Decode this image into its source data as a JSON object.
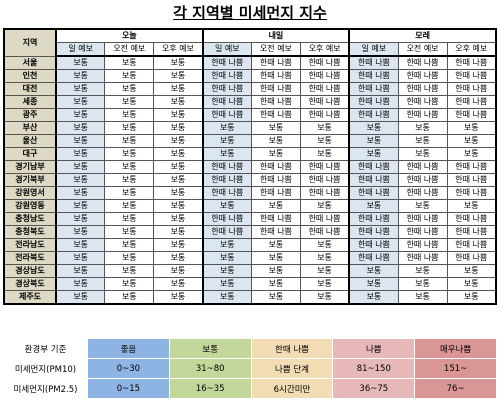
{
  "title": "각 지역별 미세먼지 지수",
  "forecast": {
    "region_header": "지역",
    "days": [
      "오늘",
      "내일",
      "모레"
    ],
    "periods": [
      "일 예보",
      "오전 예보",
      "오후 예보"
    ],
    "rows": [
      {
        "region": "서울",
        "values": [
          "보통",
          "보통",
          "보통",
          "한때 나쁨",
          "한때 나쁨",
          "한때 나쁨",
          "한때 나쁨",
          "한때 나쁨",
          "한때 나쁨"
        ]
      },
      {
        "region": "인천",
        "values": [
          "보통",
          "보통",
          "보통",
          "한때 나쁨",
          "한때 나쁨",
          "한때 나쁨",
          "한때 나쁨",
          "한때 나쁨",
          "한때 나쁨"
        ]
      },
      {
        "region": "대전",
        "values": [
          "보통",
          "보통",
          "보통",
          "한때 나쁨",
          "한때 나쁨",
          "한때 나쁨",
          "한때 나쁨",
          "한때 나쁨",
          "한때 나쁨"
        ]
      },
      {
        "region": "세종",
        "values": [
          "보통",
          "보통",
          "보통",
          "한때 나쁨",
          "한때 나쁨",
          "한때 나쁨",
          "한때 나쁨",
          "한때 나쁨",
          "한때 나쁨"
        ]
      },
      {
        "region": "광주",
        "values": [
          "보통",
          "보통",
          "보통",
          "한때 나쁨",
          "한때 나쁨",
          "한때 나쁨",
          "한때 나쁨",
          "한때 나쁨",
          "한때 나쁨"
        ]
      },
      {
        "region": "부산",
        "values": [
          "보통",
          "보통",
          "보통",
          "보통",
          "보통",
          "보통",
          "보통",
          "보통",
          "보통"
        ]
      },
      {
        "region": "울산",
        "values": [
          "보통",
          "보통",
          "보통",
          "보통",
          "보통",
          "보통",
          "보통",
          "보통",
          "보통"
        ]
      },
      {
        "region": "대구",
        "values": [
          "보통",
          "보통",
          "보통",
          "보통",
          "보통",
          "보통",
          "보통",
          "보통",
          "보통"
        ]
      },
      {
        "region": "경기남부",
        "values": [
          "보통",
          "보통",
          "보통",
          "한때 나쁨",
          "한때 나쁨",
          "한때 나쁨",
          "한때 나쁨",
          "한때 나쁨",
          "한때 나쁨"
        ]
      },
      {
        "region": "경기북부",
        "values": [
          "보통",
          "보통",
          "보통",
          "한때 나쁨",
          "한때 나쁨",
          "한때 나쁨",
          "한때 나쁨",
          "한때 나쁨",
          "한때 나쁨"
        ]
      },
      {
        "region": "강원영서",
        "values": [
          "보통",
          "보통",
          "보통",
          "한때 나쁨",
          "한때 나쁨",
          "한때 나쁨",
          "한때 나쁨",
          "한때 나쁨",
          "한때 나쁨"
        ]
      },
      {
        "region": "강원영동",
        "values": [
          "보통",
          "보통",
          "보통",
          "보통",
          "보통",
          "보통",
          "보통",
          "보통",
          "보통"
        ]
      },
      {
        "region": "충청남도",
        "values": [
          "보통",
          "보통",
          "보통",
          "한때 나쁨",
          "한때 나쁨",
          "한때 나쁨",
          "한때 나쁨",
          "한때 나쁨",
          "한때 나쁨"
        ]
      },
      {
        "region": "충청북도",
        "values": [
          "보통",
          "보통",
          "보통",
          "한때 나쁨",
          "한때 나쁨",
          "한때 나쁨",
          "한때 나쁨",
          "한때 나쁨",
          "한때 나쁨"
        ]
      },
      {
        "region": "전라남도",
        "values": [
          "보통",
          "보통",
          "보통",
          "보통",
          "보통",
          "보통",
          "한때 나쁨",
          "한때 나쁨",
          "한때 나쁨"
        ]
      },
      {
        "region": "전라북도",
        "values": [
          "보통",
          "보통",
          "보통",
          "보통",
          "보통",
          "보통",
          "한때 나쁨",
          "한때 나쁨",
          "한때 나쁨"
        ]
      },
      {
        "region": "경상남도",
        "values": [
          "보통",
          "보통",
          "보통",
          "보통",
          "보통",
          "보통",
          "보통",
          "보통",
          "보통"
        ]
      },
      {
        "region": "경상북도",
        "values": [
          "보통",
          "보통",
          "보통",
          "보통",
          "보통",
          "보통",
          "보통",
          "보통",
          "보통"
        ]
      },
      {
        "region": "제주도",
        "values": [
          "보통",
          "보통",
          "보통",
          "보통",
          "보통",
          "보통",
          "보통",
          "보통",
          "보통"
        ]
      }
    ]
  },
  "legend": {
    "header": [
      "환경부 기준",
      "좋음",
      "보통",
      "한때 나쁨",
      "나쁨",
      "매우나쁨"
    ],
    "colors": [
      "#8db4e2",
      "#c4d79b",
      "#f2dcb4",
      "#e6b8b7",
      "#da9694"
    ],
    "half_bad": [
      "나쁨 단계",
      "6시간미만"
    ],
    "rows": [
      {
        "label": "미세먼지(PM10)",
        "cells": [
          "0~30",
          "31~80",
          "81~150",
          "151~"
        ]
      },
      {
        "label": "미세먼지(PM2.5)",
        "cells": [
          "0~15",
          "16~35",
          "36~75",
          "76~"
        ]
      }
    ]
  }
}
